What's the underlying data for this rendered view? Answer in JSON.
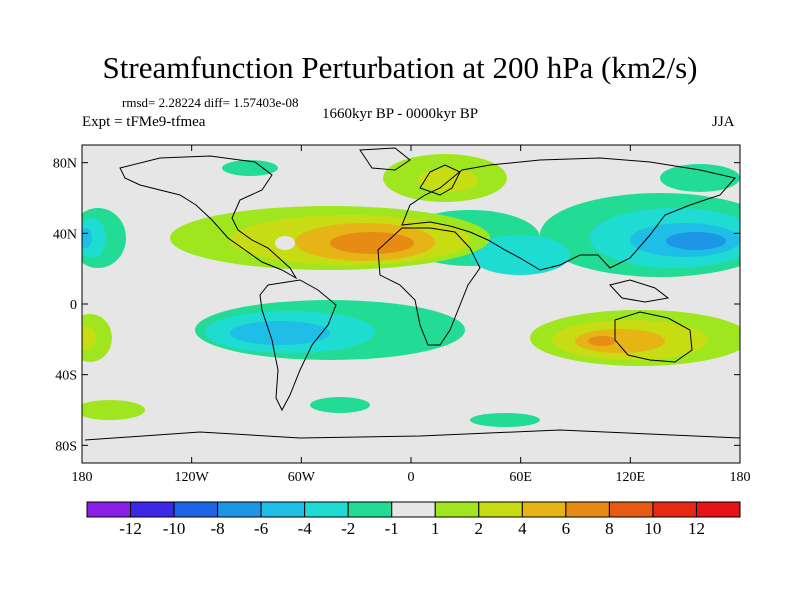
{
  "title": "Streamfunction Perturbation at 200 hPa (km2/s)",
  "stats_text": "rmsd= 2.28224  diff= 1.57403e-08",
  "period_text": "1660kyr BP - 0000kyr BP",
  "expt_text": "Expt = tFMe9-tfmea",
  "season_text": "JJA",
  "chart_data": {
    "type": "heatmap",
    "projection": "cylindrical-equidistant",
    "variable": "streamfunction perturbation",
    "level": "200 hPa",
    "units": "km2/s",
    "xlim": [
      -180,
      180
    ],
    "ylim": [
      -90,
      90
    ],
    "x_ticks": [
      -180,
      -120,
      -60,
      0,
      60,
      120,
      180
    ],
    "x_tick_labels": [
      "180",
      "120W",
      "60W",
      "0",
      "60E",
      "120E",
      "180"
    ],
    "y_ticks": [
      80,
      40,
      0,
      -40,
      -80
    ],
    "y_tick_labels": [
      "80N",
      "40N",
      "0",
      "40S",
      "80S"
    ],
    "colorbar": {
      "levels": [
        -12,
        -10,
        -8,
        -6,
        -4,
        -2,
        -1,
        1,
        2,
        4,
        6,
        8,
        10,
        12
      ],
      "labels": [
        "-12",
        "-10",
        "-8",
        "-6",
        "-4",
        "-2",
        "-1",
        "1",
        "2",
        "4",
        "6",
        "8",
        "10",
        "12"
      ],
      "colors": [
        "#8a1ee6",
        "#3c28e6",
        "#1e64e6",
        "#1e96e6",
        "#1ebee6",
        "#1edcd2",
        "#22dc96",
        "#e6e6e6",
        "#a0e61e",
        "#c8dc14",
        "#e6b414",
        "#e68c14",
        "#e65a14",
        "#e62814",
        "#e61414"
      ]
    },
    "features": [
      {
        "region": "North Africa / subtropical Atlantic",
        "lon": -25,
        "lat": 28,
        "value": 7
      },
      {
        "region": "Southern Indian Ocean / Australia",
        "lon": 100,
        "lat": -24,
        "value": 6
      },
      {
        "region": "Western Pacific / East Asia",
        "lon": 160,
        "lat": 28,
        "value": -6
      },
      {
        "region": "South Atlantic / South America",
        "lon": -75,
        "lat": -22,
        "value": -4
      },
      {
        "region": "Scandinavia",
        "lon": 15,
        "lat": 65,
        "value": 2
      },
      {
        "region": "Eastern North Pacific",
        "lon": -168,
        "lat": 30,
        "value": -3
      },
      {
        "region": "Southeast Pacific",
        "lon": -170,
        "lat": -25,
        "value": 4
      }
    ]
  }
}
